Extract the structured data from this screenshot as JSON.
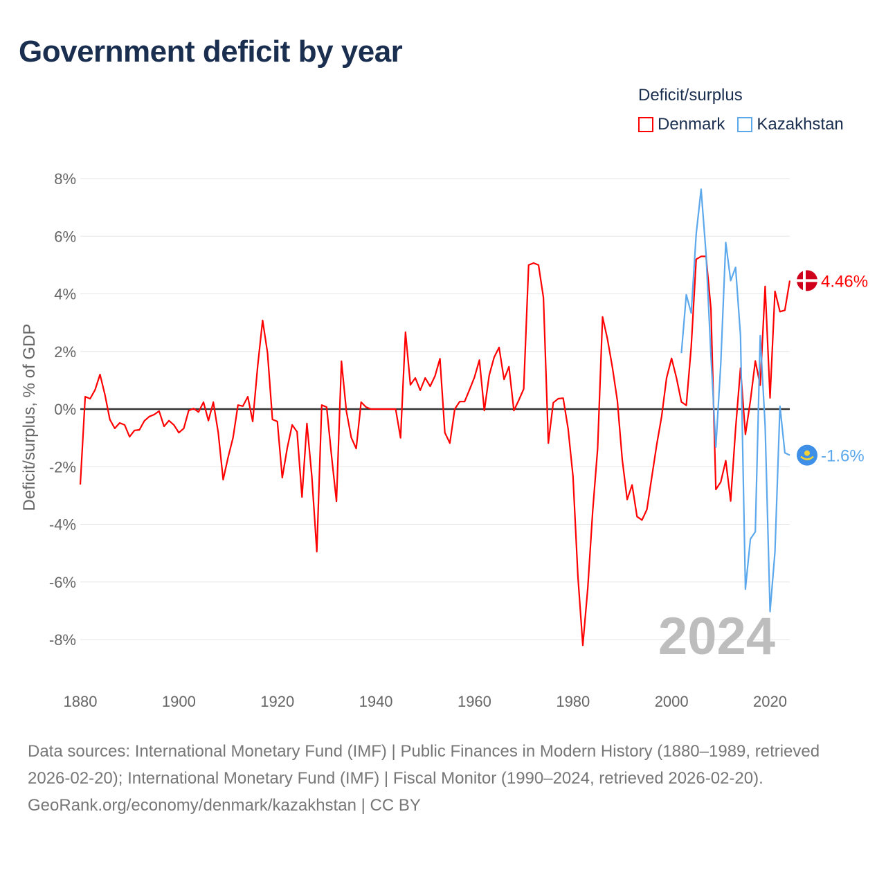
{
  "title": "Government deficit by year",
  "legend": {
    "title": "Deficit/surplus",
    "items": [
      {
        "name": "Denmark",
        "color": "#ff0000"
      },
      {
        "name": "Kazakhstan",
        "color": "#5ba8ec"
      }
    ]
  },
  "chart_data": {
    "type": "line",
    "title": "Government deficit by year",
    "xlabel": "",
    "ylabel": "Deficit/surplus, % of GDP",
    "xlim": [
      1880,
      2024
    ],
    "ylim": [
      -8,
      8
    ],
    "x_ticks": [
      "1880",
      "1900",
      "1920",
      "1940",
      "1960",
      "1980",
      "2000",
      "2020"
    ],
    "x_tick_values": [
      1880,
      1900,
      1920,
      1940,
      1960,
      1980,
      2000,
      2020
    ],
    "y_ticks": [
      "8%",
      "6%",
      "4%",
      "2%",
      "0%",
      "-2%",
      "-4%",
      "-6%",
      "-8%"
    ],
    "y_tick_values": [
      8,
      6,
      4,
      2,
      0,
      -2,
      -4,
      -6,
      -8
    ],
    "grid": true,
    "legend_position": "top-right",
    "year_label": "2024",
    "series": [
      {
        "name": "Denmark",
        "color": "#ff0000",
        "start_year": 1880,
        "end_label": "4.46%",
        "values": [
          -2.62,
          0.43,
          0.36,
          0.67,
          1.2,
          0.5,
          -0.36,
          -0.67,
          -0.48,
          -0.55,
          -0.96,
          -0.74,
          -0.72,
          -0.41,
          -0.26,
          -0.19,
          -0.07,
          -0.6,
          -0.4,
          -0.55,
          -0.82,
          -0.67,
          -0.05,
          0.02,
          -0.1,
          0.24,
          -0.4,
          0.24,
          -0.82,
          -2.45,
          -1.68,
          -0.99,
          0.14,
          0.1,
          0.43,
          -0.43,
          1.5,
          3.08,
          1.95,
          -0.36,
          -0.43,
          -2.38,
          -1.35,
          -0.55,
          -0.79,
          -3.05,
          -0.5,
          -2.33,
          -4.95,
          0.14,
          0.07,
          -1.63,
          -3.2,
          1.66,
          -0.07,
          -0.99,
          -1.37,
          0.24,
          0.07,
          0,
          0,
          0,
          0,
          0,
          0,
          -1.0,
          2.67,
          0.84,
          1.08,
          0.65,
          1.08,
          0.79,
          1.15,
          1.75,
          -0.82,
          -1.18,
          0,
          0.26,
          0.26,
          0.67,
          1.1,
          1.7,
          -0.05,
          1.18,
          1.8,
          2.14,
          1.03,
          1.47,
          -0.05,
          0.31,
          0.7,
          5.0,
          5.07,
          5.0,
          3.87,
          -1.18,
          0.22,
          0.36,
          0.38,
          -0.67,
          -2.33,
          -5.8,
          -8.2,
          -6.2,
          -3.53,
          -1.37,
          3.2,
          2.43,
          1.44,
          0.29,
          -1.76,
          -3.14,
          -2.63,
          -3.73,
          -3.85,
          -3.48,
          -2.35,
          -1.23,
          -0.25,
          1.08,
          1.76,
          1.08,
          0.25,
          0.13,
          2.16,
          5.2,
          5.3,
          5.3,
          3.48,
          -2.79,
          -2.53,
          -1.79,
          -3.19,
          -0.69,
          1.42,
          -0.88,
          0.29,
          1.67,
          0.83,
          4.26,
          0.39,
          4.09,
          3.38,
          3.43,
          4.46
        ]
      },
      {
        "name": "Kazakhstan",
        "color": "#5ba8ec",
        "start_year": 2002,
        "end_label": "-1.6%",
        "values": [
          1.94,
          3.97,
          3.33,
          6.08,
          7.63,
          5.39,
          1.86,
          -1.32,
          1.57,
          5.78,
          4.46,
          4.92,
          2.55,
          -6.25,
          -4.51,
          -4.26,
          2.55,
          -0.59,
          -7.03,
          -4.95,
          0.1,
          -1.52,
          -1.6
        ]
      }
    ]
  },
  "footer": {
    "sources": "Data sources: International Monetary Fund (IMF) | Public Finances in Modern History (1880–1989, retrieved 2026-02-20); International Monetary Fund (IMF) | Fiscal Monitor (1990–2024, retrieved 2026-02-20).",
    "credit": "GeoRank.org/economy/denmark/kazakhstan | CC BY"
  }
}
